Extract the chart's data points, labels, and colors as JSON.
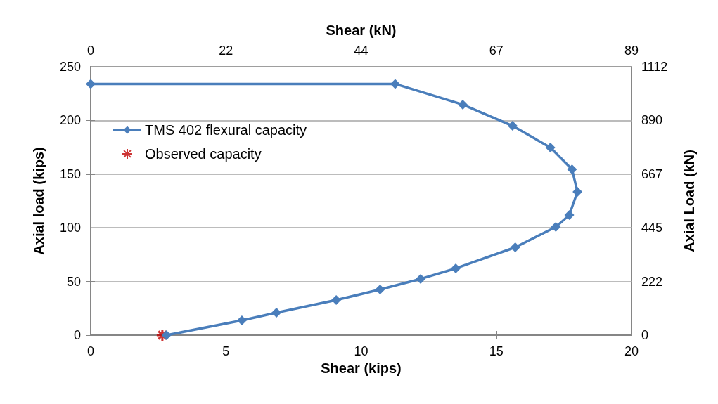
{
  "chart_data": {
    "type": "line",
    "xlabel": "Shear (kips)",
    "ylabel": "Axial load (kips)",
    "x2label": "Shear (kN)",
    "y2label": "Axial Load (kN)",
    "xlim": [
      0,
      20
    ],
    "xticks": [
      0,
      5,
      10,
      15,
      20
    ],
    "ylim": [
      0,
      250
    ],
    "yticks": [
      0,
      50,
      100,
      150,
      200,
      250
    ],
    "x2lim": [
      0,
      89
    ],
    "x2ticks": [
      0,
      {
        "value": 22.25,
        "label": "22"
      },
      {
        "value": 44.5,
        "label": "44"
      },
      {
        "value": 66.75,
        "label": "67"
      },
      89
    ],
    "y2lim": [
      0,
      1112
    ],
    "y2ticks": [
      0,
      {
        "value": 222.4,
        "label": "222"
      },
      {
        "value": 444.8,
        "label": "445"
      },
      {
        "value": 667.2,
        "label": "667"
      },
      {
        "value": 889.6,
        "label": "890"
      },
      1112
    ],
    "grid": "y",
    "legend": "top left",
    "series": [
      {
        "name": "TMS 402 flexural capacity",
        "marker": "diamond",
        "color": "#4a7ebb",
        "x": [
          0,
          11.26,
          13.76,
          15.6,
          17.0,
          17.8,
          18.0,
          17.7,
          17.2,
          15.7,
          13.5,
          12.2,
          10.7,
          9.08,
          6.87,
          5.59,
          2.8
        ],
        "values": [
          234,
          234,
          214.7,
          195,
          174.7,
          154.5,
          133.5,
          111.9,
          100.8,
          81.8,
          62.2,
          52.4,
          42.5,
          32.7,
          20.9,
          13.7,
          0
        ]
      },
      {
        "name": "Observed capacity",
        "type": "scatter",
        "marker": "cross",
        "color": "#c00000",
        "x": [
          2.65
        ],
        "values": [
          0
        ]
      }
    ]
  }
}
